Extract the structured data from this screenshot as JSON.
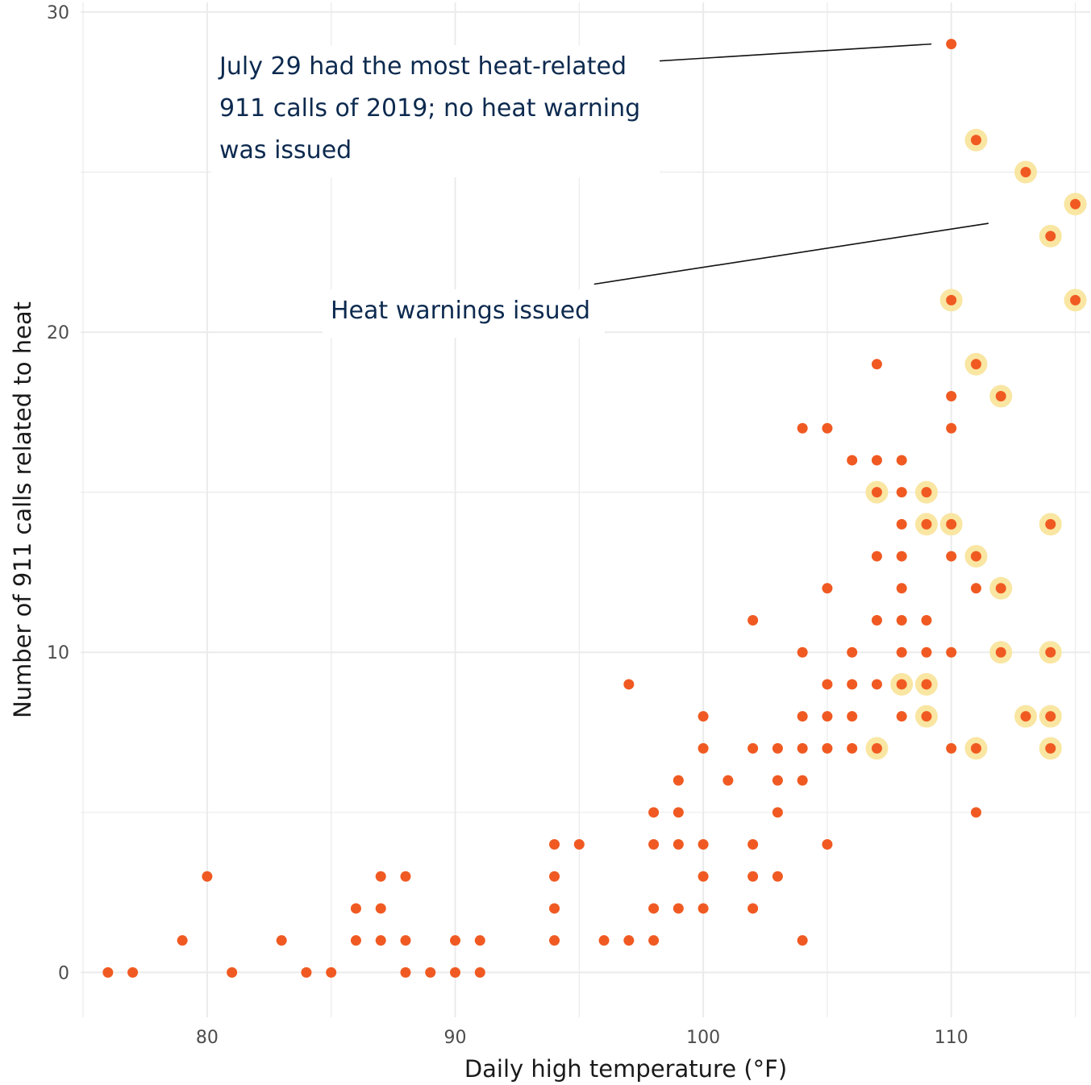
{
  "chart_data": {
    "type": "scatter",
    "title": "",
    "xlabel": "Daily high temperature (°F)",
    "ylabel": "Number of 911 calls related to heat",
    "xlim": [
      74.9,
      115.6
    ],
    "ylim": [
      -1.4,
      30.3
    ],
    "x_ticks": [
      80,
      90,
      100,
      110
    ],
    "x_tick_labels": [
      "80",
      "90",
      "100",
      "110"
    ],
    "y_ticks": [
      0,
      10,
      20,
      30
    ],
    "y_tick_labels": [
      "0",
      "10",
      "20",
      "30"
    ],
    "grid": true,
    "colors": {
      "point": "#f05a22",
      "highlight": "#f9e6a2",
      "annotation": "#0d2a4f",
      "grid": "#ebebeb"
    },
    "annotations": [
      {
        "lines": [
          "July 29 had the most heat-related",
          "911 calls of 2019; no heat warning",
          "was issued"
        ],
        "pointer_from": [
          84.3,
          27.8
        ],
        "pointer_to": [
          109.2,
          29.0
        ]
      },
      {
        "lines": [
          "Heat warnings issued"
        ],
        "pointer_from": [
          95.6,
          21.5
        ],
        "pointer_to": [
          111.5,
          23.4
        ]
      }
    ],
    "series": [
      {
        "name": "",
        "points": [
          [
            76,
            0
          ],
          [
            77,
            0
          ],
          [
            81,
            0
          ],
          [
            84,
            0
          ],
          [
            85,
            0
          ],
          [
            88,
            0
          ],
          [
            89,
            0
          ],
          [
            90,
            0
          ],
          [
            91,
            0
          ],
          [
            79,
            1
          ],
          [
            83,
            1
          ],
          [
            86,
            1
          ],
          [
            87,
            1
          ],
          [
            88,
            1
          ],
          [
            90,
            1
          ],
          [
            91,
            1
          ],
          [
            94,
            1
          ],
          [
            96,
            1
          ],
          [
            97,
            1
          ],
          [
            98,
            1
          ],
          [
            104,
            1
          ],
          [
            86,
            2
          ],
          [
            87,
            2
          ],
          [
            94,
            2
          ],
          [
            98,
            2
          ],
          [
            99,
            2
          ],
          [
            100,
            2
          ],
          [
            102,
            2
          ],
          [
            80,
            3
          ],
          [
            87,
            3
          ],
          [
            88,
            3
          ],
          [
            94,
            3
          ],
          [
            100,
            3
          ],
          [
            102,
            3
          ],
          [
            103,
            3
          ],
          [
            94,
            4
          ],
          [
            95,
            4
          ],
          [
            98,
            4
          ],
          [
            99,
            4
          ],
          [
            100,
            4
          ],
          [
            102,
            4
          ],
          [
            105,
            4
          ],
          [
            98,
            5
          ],
          [
            99,
            5
          ],
          [
            103,
            5
          ],
          [
            111,
            5
          ],
          [
            99,
            6
          ],
          [
            101,
            6
          ],
          [
            103,
            6
          ],
          [
            104,
            6
          ],
          [
            100,
            7
          ],
          [
            102,
            7
          ],
          [
            103,
            7
          ],
          [
            104,
            7
          ],
          [
            105,
            7
          ],
          [
            106,
            7
          ],
          [
            107,
            7
          ],
          [
            110,
            7
          ],
          [
            111,
            7
          ],
          [
            114,
            7
          ],
          [
            100,
            8
          ],
          [
            104,
            8
          ],
          [
            105,
            8
          ],
          [
            106,
            8
          ],
          [
            108,
            8
          ],
          [
            109,
            8
          ],
          [
            113,
            8
          ],
          [
            114,
            8
          ],
          [
            97,
            9
          ],
          [
            105,
            9
          ],
          [
            106,
            9
          ],
          [
            107,
            9
          ],
          [
            108,
            9
          ],
          [
            109,
            9
          ],
          [
            104,
            10
          ],
          [
            106,
            10
          ],
          [
            108,
            10
          ],
          [
            109,
            10
          ],
          [
            110,
            10
          ],
          [
            112,
            10
          ],
          [
            114,
            10
          ],
          [
            102,
            11
          ],
          [
            107,
            11
          ],
          [
            108,
            11
          ],
          [
            109,
            11
          ],
          [
            105,
            12
          ],
          [
            108,
            12
          ],
          [
            111,
            12
          ],
          [
            112,
            12
          ],
          [
            107,
            13
          ],
          [
            108,
            13
          ],
          [
            110,
            13
          ],
          [
            111,
            13
          ],
          [
            108,
            14
          ],
          [
            109,
            14
          ],
          [
            110,
            14
          ],
          [
            114,
            14
          ],
          [
            107,
            15
          ],
          [
            108,
            15
          ],
          [
            109,
            15
          ],
          [
            106,
            16
          ],
          [
            107,
            16
          ],
          [
            108,
            16
          ],
          [
            104,
            17
          ],
          [
            105,
            17
          ],
          [
            110,
            17
          ],
          [
            110,
            18
          ],
          [
            112,
            18
          ],
          [
            107,
            19
          ],
          [
            111,
            19
          ],
          [
            110,
            21
          ],
          [
            115,
            21
          ],
          [
            114,
            23
          ],
          [
            115,
            24
          ],
          [
            113,
            25
          ],
          [
            111,
            26
          ],
          [
            110,
            29
          ]
        ],
        "heat_warning": [
          [
            107,
            7
          ],
          [
            111,
            7
          ],
          [
            114,
            7
          ],
          [
            109,
            8
          ],
          [
            113,
            8
          ],
          [
            114,
            8
          ],
          [
            108,
            9
          ],
          [
            109,
            9
          ],
          [
            112,
            10
          ],
          [
            114,
            10
          ],
          [
            112,
            12
          ],
          [
            111,
            13
          ],
          [
            109,
            14
          ],
          [
            110,
            14
          ],
          [
            114,
            14
          ],
          [
            107,
            15
          ],
          [
            109,
            15
          ],
          [
            112,
            18
          ],
          [
            111,
            19
          ],
          [
            110,
            21
          ],
          [
            115,
            21
          ],
          [
            114,
            23
          ],
          [
            115,
            24
          ],
          [
            113,
            25
          ],
          [
            111,
            26
          ]
        ]
      }
    ]
  }
}
